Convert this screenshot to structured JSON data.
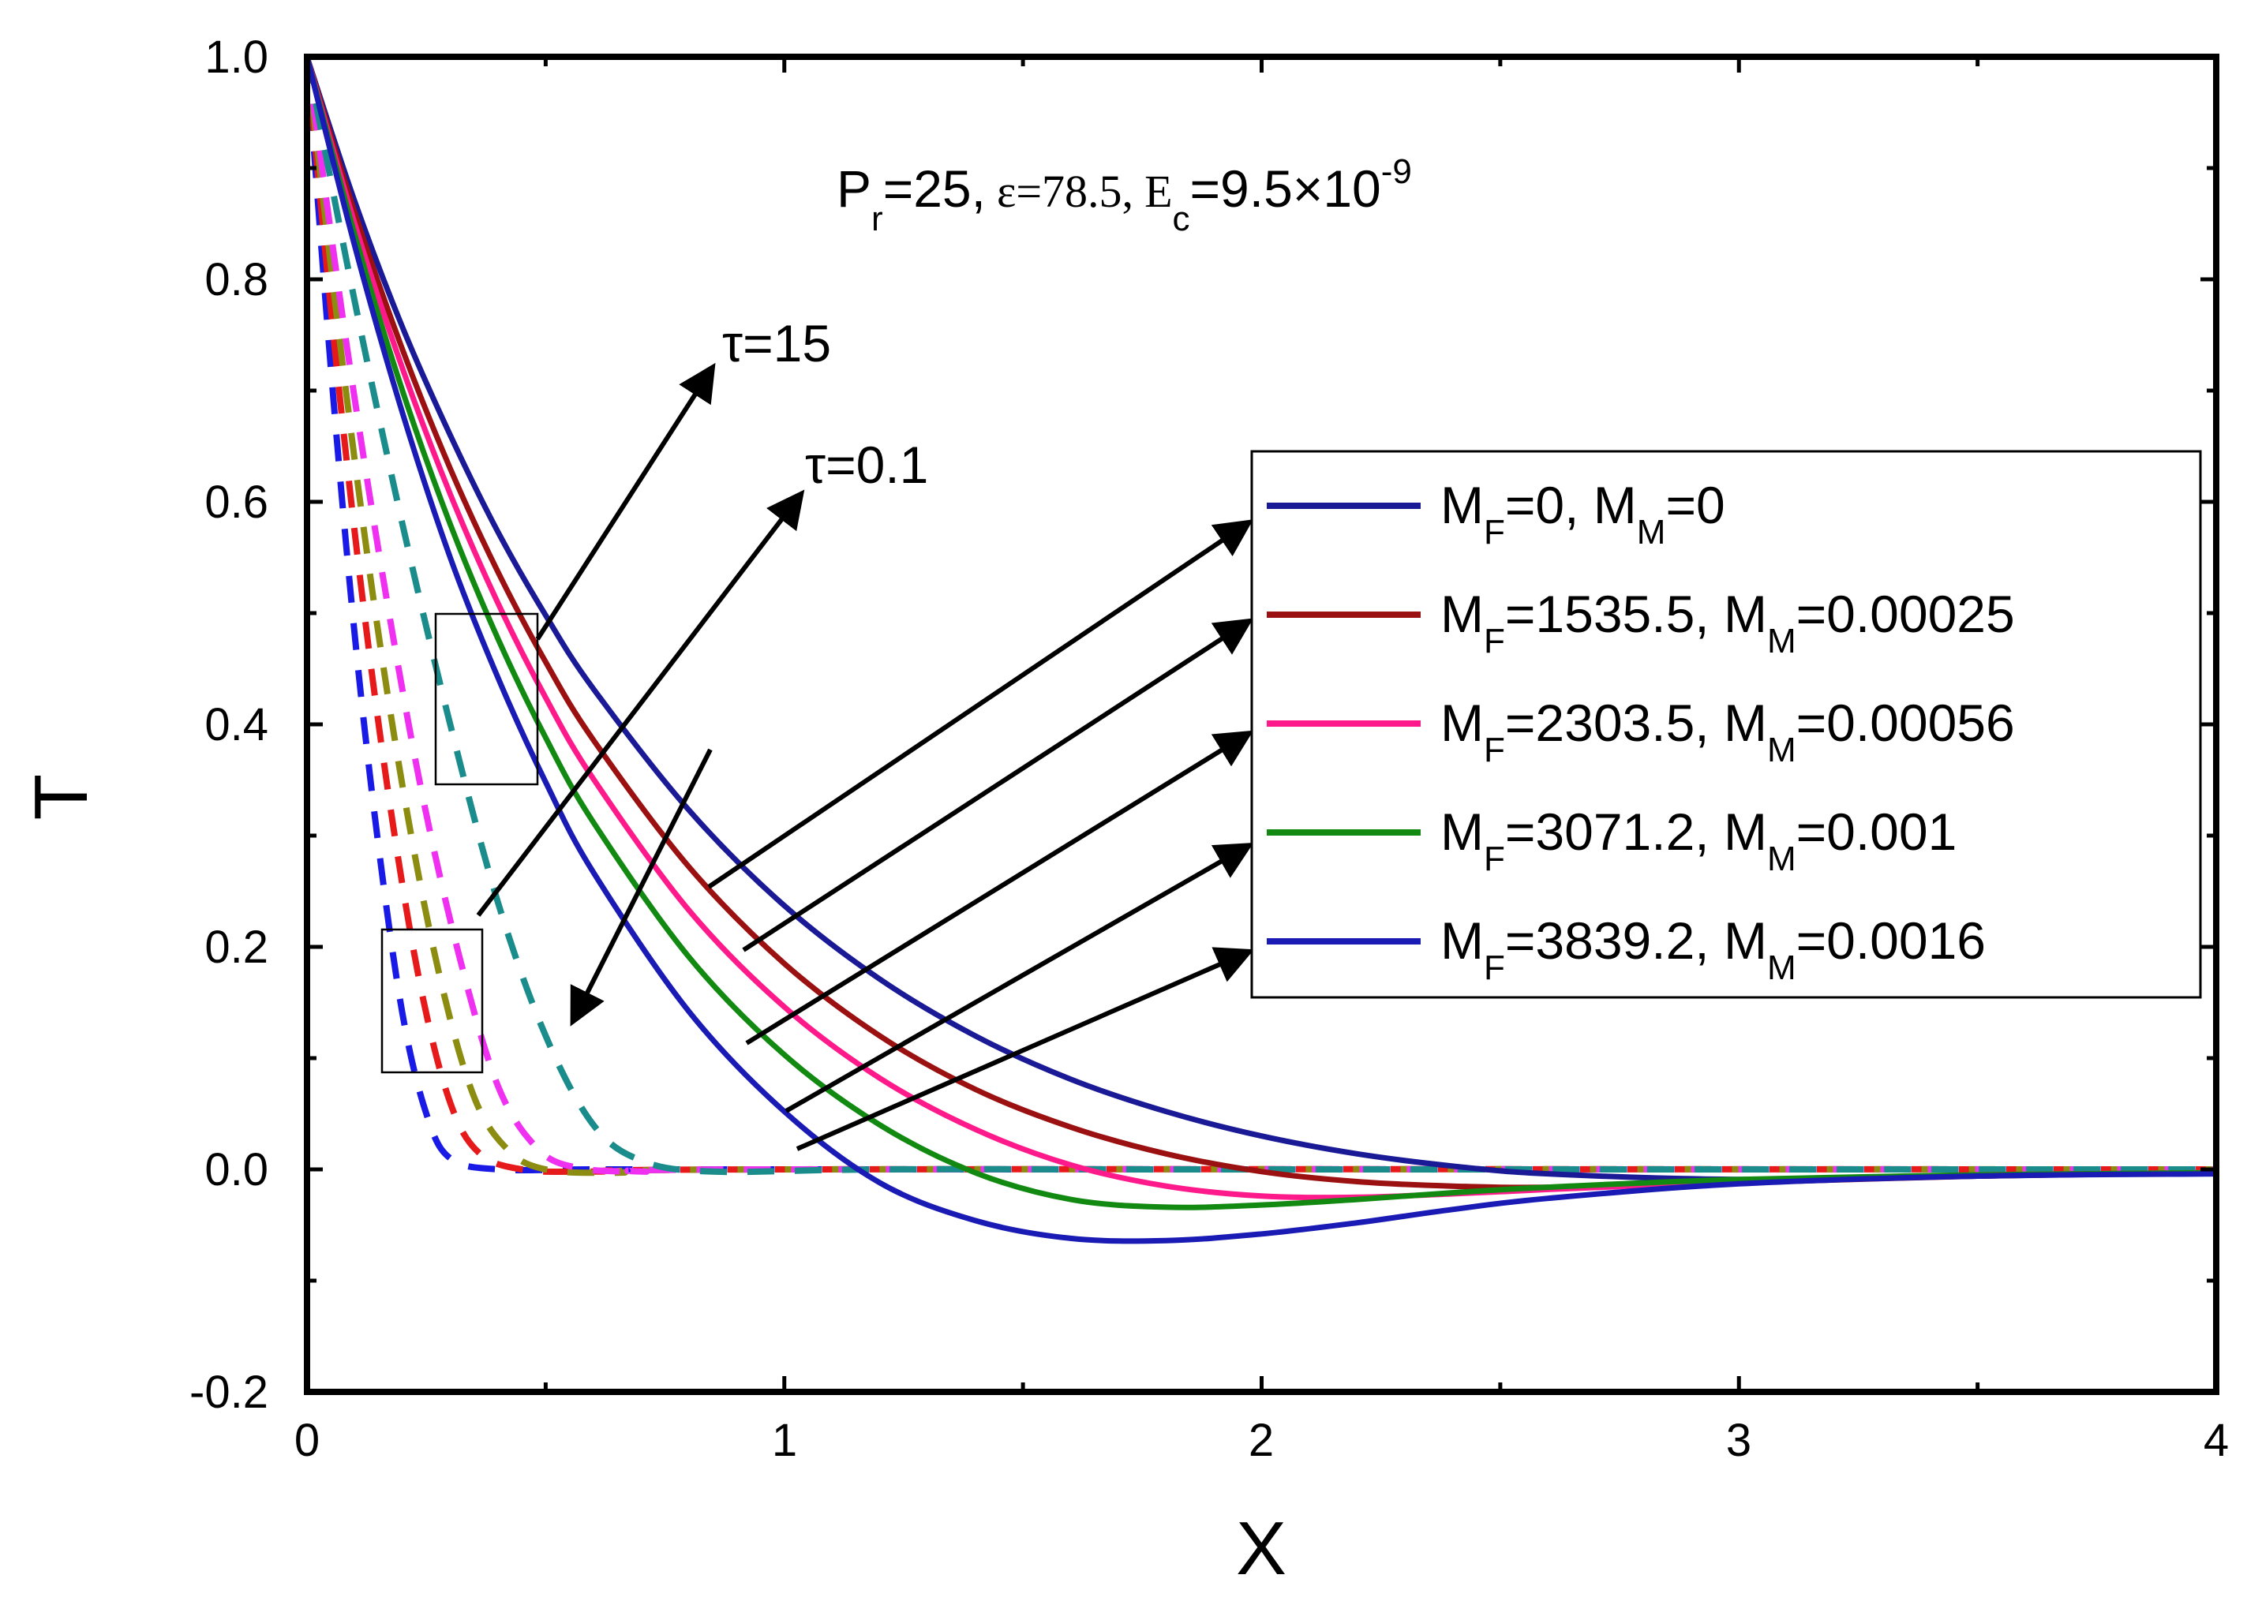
{
  "chart_data": {
    "type": "line",
    "title": "",
    "xlabel": "X",
    "ylabel": "T",
    "xlim": [
      0,
      4
    ],
    "ylim": [
      -0.2,
      1.0
    ],
    "x_ticks": [
      "0",
      "1",
      "2",
      "3",
      "4"
    ],
    "y_ticks": [
      "-0.2",
      "0.0",
      "0.2",
      "0.4",
      "0.6",
      "0.8",
      "1.0"
    ],
    "parameters": {
      "pr_base": "P",
      "pr_sub": "r",
      "pr_value": "=25,",
      "eps": "ε=78.5,",
      "ec_base": "E",
      "ec_sub": "c",
      "ec_value": "=9.5×10",
      "ec_exp": "-9"
    },
    "annotations": {
      "tau_high": "τ=15",
      "tau_low": "τ=0.1"
    },
    "series": [
      {
        "name": "MF=0, MM=0",
        "mf": "=0, M",
        "mm": "=0",
        "color": "#1a1a96",
        "style": "solid",
        "x": [
          0,
          0.1,
          0.2,
          0.3,
          0.4,
          0.5,
          0.6,
          0.8,
          1.0,
          1.2,
          1.4,
          1.6,
          1.8,
          2.0,
          2.2,
          2.4,
          2.6,
          3.0,
          3.5,
          4.0
        ],
        "values": [
          1.0,
          0.87,
          0.757,
          0.66,
          0.573,
          0.498,
          0.432,
          0.323,
          0.237,
          0.171,
          0.12,
          0.081,
          0.052,
          0.03,
          0.014,
          0.003,
          -0.004,
          -0.009,
          -0.006,
          -0.003
        ]
      },
      {
        "name": "MF=1535.5, MM=0.00025",
        "mf": "=1535.5, M",
        "mm": "=0.00025",
        "color": "#9b1010",
        "style": "solid",
        "x": [
          0,
          0.1,
          0.2,
          0.3,
          0.4,
          0.5,
          0.6,
          0.8,
          1.0,
          1.2,
          1.4,
          1.6,
          1.8,
          2.0,
          2.2,
          2.4,
          2.6,
          3.0,
          3.5,
          4.0
        ],
        "values": [
          1.0,
          0.86,
          0.737,
          0.63,
          0.537,
          0.456,
          0.386,
          0.272,
          0.185,
          0.12,
          0.072,
          0.038,
          0.014,
          -0.002,
          -0.011,
          -0.015,
          -0.016,
          -0.012,
          -0.006,
          -0.003
        ]
      },
      {
        "name": "MF=2303.5, MM=0.00056",
        "mf": "=2303.5, M",
        "mm": "=0.00056",
        "color": "#ff1a8c",
        "style": "solid",
        "x": [
          0,
          0.1,
          0.2,
          0.3,
          0.4,
          0.5,
          0.6,
          0.8,
          1.0,
          1.2,
          1.4,
          1.6,
          1.8,
          2.0,
          2.2,
          2.4,
          2.6,
          3.0,
          3.5,
          4.0
        ],
        "values": [
          1.0,
          0.85,
          0.72,
          0.607,
          0.509,
          0.424,
          0.351,
          0.233,
          0.146,
          0.082,
          0.036,
          0.004,
          -0.015,
          -0.024,
          -0.025,
          -0.022,
          -0.018,
          -0.011,
          -0.005,
          -0.003
        ]
      },
      {
        "name": "MF=3071.2, MM=0.001",
        "mf": "=3071.2, M",
        "mm": "=0.001",
        "color": "#128a12",
        "style": "solid",
        "x": [
          0,
          0.1,
          0.2,
          0.3,
          0.4,
          0.5,
          0.6,
          0.8,
          1.0,
          1.2,
          1.4,
          1.6,
          1.8,
          2.0,
          2.2,
          2.4,
          2.6,
          3.0,
          3.5,
          4.0
        ],
        "values": [
          1.0,
          0.84,
          0.7,
          0.58,
          0.477,
          0.388,
          0.312,
          0.191,
          0.103,
          0.04,
          -0.003,
          -0.027,
          -0.034,
          -0.032,
          -0.027,
          -0.021,
          -0.016,
          -0.009,
          -0.005,
          -0.003
        ]
      },
      {
        "name": "MF=3839.2, MM=0.0016",
        "mf": "=3839.2, M",
        "mm": "=0.0016",
        "color": "#1a1ab4",
        "style": "solid",
        "x": [
          0,
          0.1,
          0.2,
          0.3,
          0.4,
          0.5,
          0.6,
          0.8,
          1.0,
          1.2,
          1.4,
          1.6,
          1.8,
          2.0,
          2.2,
          2.4,
          2.6,
          3.0,
          3.5,
          4.0
        ],
        "values": [
          1.0,
          0.83,
          0.68,
          0.55,
          0.442,
          0.348,
          0.267,
          0.142,
          0.052,
          -0.012,
          -0.046,
          -0.062,
          -0.064,
          -0.058,
          -0.048,
          -0.036,
          -0.026,
          -0.013,
          -0.006,
          -0.004
        ]
      },
      {
        "name": "τ=0.1 (MF=0)",
        "color": "#1a1ae6",
        "style": "dashed",
        "x": [
          0,
          0.05,
          0.1,
          0.15,
          0.2,
          0.25,
          0.3,
          0.4,
          0.6,
          1.0,
          4.0
        ],
        "values": [
          1.0,
          0.72,
          0.48,
          0.29,
          0.14,
          0.05,
          0.01,
          0.0,
          0.0,
          0.0,
          0.0
        ]
      },
      {
        "name": "τ=0.1 (MF=1535.5)",
        "color": "#e61a1a",
        "style": "dashed",
        "x": [
          0,
          0.06,
          0.12,
          0.18,
          0.24,
          0.3,
          0.36,
          0.45,
          0.6,
          1.0,
          4.0
        ],
        "values": [
          1.0,
          0.73,
          0.5,
          0.31,
          0.16,
          0.06,
          0.015,
          0.0,
          -0.002,
          0.0,
          0.0
        ]
      },
      {
        "name": "τ=0.1 (MF=2303.5)",
        "color": "#8c8c10",
        "style": "dashed",
        "x": [
          0,
          0.07,
          0.14,
          0.21,
          0.28,
          0.35,
          0.42,
          0.5,
          0.65,
          1.0,
          4.0
        ],
        "values": [
          1.0,
          0.74,
          0.51,
          0.32,
          0.17,
          0.065,
          0.018,
          0.0,
          -0.003,
          0.0,
          0.0
        ]
      },
      {
        "name": "τ=0.1 (MF=3071.2)",
        "color": "#f030f0",
        "style": "dashed",
        "x": [
          0,
          0.08,
          0.16,
          0.24,
          0.32,
          0.4,
          0.48,
          0.56,
          0.7,
          1.0,
          4.0
        ],
        "values": [
          1.0,
          0.75,
          0.53,
          0.34,
          0.19,
          0.075,
          0.02,
          0.002,
          -0.002,
          0.0,
          0.0
        ]
      },
      {
        "name": "τ=0.1 (MF=3839.2)",
        "color": "#1a8c8c",
        "style": "dashed",
        "x": [
          0,
          0.1,
          0.2,
          0.3,
          0.4,
          0.5,
          0.6,
          0.7,
          0.85,
          1.2,
          2.0,
          4.0
        ],
        "values": [
          1.0,
          0.78,
          0.58,
          0.4,
          0.24,
          0.12,
          0.04,
          0.008,
          -0.002,
          0.0,
          0.0,
          0.0
        ]
      }
    ]
  }
}
